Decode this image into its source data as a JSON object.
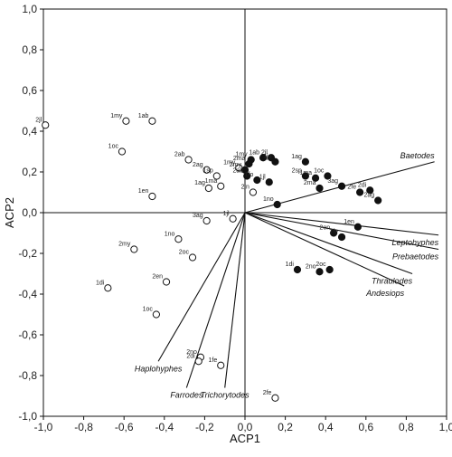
{
  "chart_data": {
    "type": "scatter",
    "xlabel": "ACP1",
    "ylabel": "ACP2",
    "xlim": [
      -1.0,
      1.0
    ],
    "ylim": [
      -1.0,
      1.0
    ],
    "xticks": [
      "-1,0",
      "-0,8",
      "-0,6",
      "-0,4",
      "-0,2",
      "0,0",
      "0,2",
      "0,4",
      "0,6",
      "0,8",
      "1,0"
    ],
    "yticks": [
      "1,0",
      "0,8",
      "0,6",
      "0,4",
      "0,2",
      "0,0",
      "-0,2",
      "-0,4",
      "-0,6",
      "-0,8",
      "-1,0"
    ],
    "grid": false,
    "open_points": [
      {
        "label": "2jl",
        "x": -0.99,
        "y": 0.43
      },
      {
        "label": "1my",
        "x": -0.59,
        "y": 0.45
      },
      {
        "label": "1ab",
        "x": -0.46,
        "y": 0.45
      },
      {
        "label": "1oc",
        "x": -0.61,
        "y": 0.3
      },
      {
        "label": "2ab",
        "x": -0.28,
        "y": 0.26
      },
      {
        "label": "2ag",
        "x": -0.19,
        "y": 0.21
      },
      {
        "label": "1sp",
        "x": -0.14,
        "y": 0.18
      },
      {
        "label": "1my",
        "x": -0.03,
        "y": 0.22
      },
      {
        "label": "1ag",
        "x": -0.18,
        "y": 0.12
      },
      {
        "label": "1ma",
        "x": -0.12,
        "y": 0.13
      },
      {
        "label": "1en",
        "x": -0.46,
        "y": 0.08
      },
      {
        "label": "2jn",
        "x": 0.04,
        "y": 0.1
      },
      {
        "label": "3ag",
        "x": -0.19,
        "y": -0.04
      },
      {
        "label": "1jl",
        "x": -0.06,
        "y": -0.03
      },
      {
        "label": "1no",
        "x": -0.33,
        "y": -0.13
      },
      {
        "label": "2oc",
        "x": -0.26,
        "y": -0.22
      },
      {
        "label": "2my",
        "x": -0.55,
        "y": -0.18
      },
      {
        "label": "2en",
        "x": -0.39,
        "y": -0.34
      },
      {
        "label": "1di",
        "x": -0.68,
        "y": -0.37
      },
      {
        "label": "1oc",
        "x": -0.44,
        "y": -0.5
      },
      {
        "label": "2no",
        "x": -0.22,
        "y": -0.71
      },
      {
        "label": "2di",
        "x": -0.23,
        "y": -0.73
      },
      {
        "label": "1fe",
        "x": -0.12,
        "y": -0.75
      },
      {
        "label": "2fe",
        "x": 0.15,
        "y": -0.91
      }
    ],
    "filled_points": [
      {
        "label": "1ab",
        "x": 0.09,
        "y": 0.27
      },
      {
        "label": "2jl",
        "x": 0.13,
        "y": 0.27
      },
      {
        "label": "1jn",
        "x": 0.15,
        "y": 0.25
      },
      {
        "label": "1my",
        "x": 0.03,
        "y": 0.26
      },
      {
        "label": "2ma",
        "x": 0.02,
        "y": 0.24
      },
      {
        "label": "2my",
        "x": 0.0,
        "y": 0.21
      },
      {
        "label": "2ab",
        "x": 0.01,
        "y": 0.18
      },
      {
        "label": "1fo",
        "x": 0.06,
        "y": 0.16
      },
      {
        "label": "1jl",
        "x": 0.12,
        "y": 0.15
      },
      {
        "label": "1ag",
        "x": 0.3,
        "y": 0.25
      },
      {
        "label": "2sp",
        "x": 0.3,
        "y": 0.18
      },
      {
        "label": "1ma",
        "x": 0.35,
        "y": 0.17
      },
      {
        "label": "1oc",
        "x": 0.41,
        "y": 0.18
      },
      {
        "label": "2ma",
        "x": 0.37,
        "y": 0.12
      },
      {
        "label": "3ag",
        "x": 0.48,
        "y": 0.13
      },
      {
        "label": "2di",
        "x": 0.62,
        "y": 0.11
      },
      {
        "label": "2fe",
        "x": 0.57,
        "y": 0.1
      },
      {
        "label": "2ag",
        "x": 0.66,
        "y": 0.06
      },
      {
        "label": "1no",
        "x": 0.16,
        "y": 0.04
      },
      {
        "label": "1en",
        "x": 0.56,
        "y": -0.07
      },
      {
        "label": "2en",
        "x": 0.44,
        "y": -0.1
      },
      {
        "label": "1fe",
        "x": 0.48,
        "y": -0.12
      },
      {
        "label": "1di",
        "x": 0.26,
        "y": -0.28
      },
      {
        "label": "2no",
        "x": 0.37,
        "y": -0.29
      },
      {
        "label": "2oc",
        "x": 0.42,
        "y": -0.28
      }
    ],
    "vectors": [
      {
        "label": "Baetodes",
        "x": 0.94,
        "y": 0.25
      },
      {
        "label": "Leptohyphes",
        "x": 0.96,
        "y": -0.11
      },
      {
        "label": "Prebaetodes",
        "x": 0.96,
        "y": -0.18
      },
      {
        "label": "Thraulodes",
        "x": 0.83,
        "y": -0.3
      },
      {
        "label": "Andesiops",
        "x": 0.79,
        "y": -0.36
      },
      {
        "label": "Haplohyphes",
        "x": -0.43,
        "y": -0.73
      },
      {
        "label": "Farrodes",
        "x": -0.29,
        "y": -0.86
      },
      {
        "label": "Trichorytodes",
        "x": -0.1,
        "y": -0.86
      }
    ]
  }
}
